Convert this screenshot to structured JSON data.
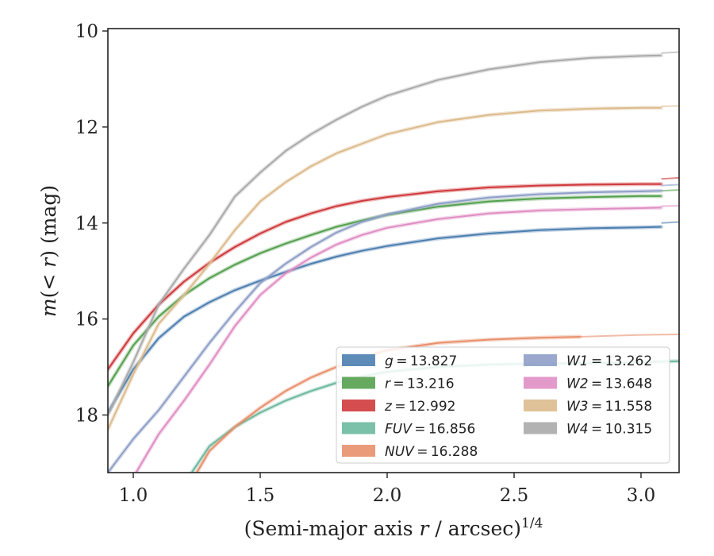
{
  "chart_data": {
    "type": "line",
    "xlabel": "(Semi-major axis r / arcsec)^{1/4}",
    "xlabel_main": "(Semi-major axis ",
    "xlabel_var": "r",
    "xlabel_rest": " / arcsec)",
    "xlabel_sup": "1/4",
    "ylabel": "m(< r) (mag)",
    "ylabel_m": "m",
    "ylabel_open": "(",
    "ylabel_lt": "< r",
    "ylabel_close": ")",
    "ylabel_unit": " (mag)",
    "xlim": [
      0.9,
      3.15
    ],
    "ylim": [
      19.2,
      9.95
    ],
    "y_inverted": true,
    "x_ticks": [
      1.0,
      1.5,
      2.0,
      2.5,
      3.0
    ],
    "x_tick_labels": [
      "1.0",
      "1.5",
      "2.0",
      "2.5",
      "3.0"
    ],
    "y_ticks": [
      10,
      12,
      14,
      16,
      18
    ],
    "y_tick_labels": [
      "10",
      "12",
      "14",
      "16",
      "18"
    ],
    "grid": false,
    "legend_position": "lower-right",
    "series": [
      {
        "name": "g",
        "value": "13.827",
        "color": "#4c7fb0",
        "x": [
          0.9,
          1.0,
          1.1,
          1.2,
          1.3,
          1.4,
          1.5,
          1.6,
          1.7,
          1.8,
          1.9,
          2.0,
          2.2,
          2.4,
          2.6,
          2.8,
          3.0,
          3.08
        ],
        "values": [
          17.95,
          17.05,
          16.4,
          15.95,
          15.65,
          15.4,
          15.2,
          15.02,
          14.85,
          14.7,
          14.58,
          14.48,
          14.32,
          14.22,
          14.15,
          14.11,
          14.09,
          14.08
        ],
        "ext_x": [
          3.08,
          3.15
        ],
        "ext_values": [
          14.0,
          13.98
        ]
      },
      {
        "name": "r",
        "value": "13.216",
        "color": "#55a14f",
        "x": [
          0.9,
          1.0,
          1.1,
          1.2,
          1.3,
          1.4,
          1.5,
          1.6,
          1.7,
          1.8,
          1.9,
          2.0,
          2.2,
          2.4,
          2.6,
          2.8,
          3.0,
          3.08
        ],
        "values": [
          17.4,
          16.55,
          15.95,
          15.5,
          15.15,
          14.87,
          14.63,
          14.43,
          14.25,
          14.08,
          13.95,
          13.83,
          13.66,
          13.55,
          13.49,
          13.46,
          13.44,
          13.44
        ],
        "ext_x": [
          3.08,
          3.15
        ],
        "ext_values": [
          13.33,
          13.31
        ]
      },
      {
        "name": "z",
        "value": "12.992",
        "color": "#cf3a3c",
        "x": [
          0.9,
          1.0,
          1.1,
          1.2,
          1.3,
          1.4,
          1.5,
          1.6,
          1.7,
          1.8,
          1.9,
          2.0,
          2.2,
          2.4,
          2.6,
          2.8,
          3.0,
          3.08
        ],
        "values": [
          17.05,
          16.3,
          15.7,
          15.22,
          14.83,
          14.5,
          14.22,
          13.98,
          13.8,
          13.65,
          13.54,
          13.46,
          13.34,
          13.26,
          13.22,
          13.2,
          13.19,
          13.19
        ],
        "ext_x": [
          3.08,
          3.15
        ],
        "ext_values": [
          13.08,
          13.06
        ]
      },
      {
        "name": "FUV",
        "value": "16.856",
        "color": "#6db9a0",
        "x": [
          1.23,
          1.3,
          1.4,
          1.5,
          1.6,
          1.7,
          1.8,
          1.9,
          2.0,
          2.2,
          2.4,
          2.6,
          2.8,
          3.0,
          3.15
        ],
        "values": [
          19.2,
          18.65,
          18.25,
          17.95,
          17.7,
          17.5,
          17.33,
          17.2,
          17.1,
          17.0,
          16.95,
          16.93,
          16.92,
          16.9,
          16.88
        ]
      },
      {
        "name": "NUV",
        "value": "16.288",
        "color": "#e8906c",
        "x": [
          1.25,
          1.3,
          1.4,
          1.5,
          1.6,
          1.7,
          1.8,
          1.9,
          2.0,
          2.2,
          2.4,
          2.6,
          2.76
        ],
        "values": [
          19.2,
          18.75,
          18.25,
          17.85,
          17.5,
          17.22,
          17.0,
          16.8,
          16.65,
          16.5,
          16.43,
          16.39,
          16.37
        ],
        "ext_x": [
          2.76,
          3.0,
          3.15
        ],
        "ext_values": [
          16.37,
          16.33,
          16.32
        ]
      },
      {
        "name": "W1",
        "value": "13.262",
        "color": "#8e9fc7",
        "x": [
          0.9,
          1.0,
          1.1,
          1.2,
          1.3,
          1.4,
          1.5,
          1.6,
          1.7,
          1.8,
          1.9,
          2.0,
          2.2,
          2.4,
          2.6,
          2.8,
          3.0,
          3.08
        ],
        "values": [
          19.2,
          18.5,
          17.9,
          17.2,
          16.5,
          15.85,
          15.25,
          14.85,
          14.5,
          14.2,
          13.98,
          13.82,
          13.6,
          13.47,
          13.4,
          13.36,
          13.34,
          13.33
        ],
        "ext_x": [
          3.08,
          3.15
        ],
        "ext_values": [
          13.22,
          13.2
        ]
      },
      {
        "name": "W2",
        "value": "13.648",
        "color": "#e08fc4",
        "x": [
          0.9,
          1.0,
          1.1,
          1.2,
          1.3,
          1.4,
          1.5,
          1.6,
          1.7,
          1.8,
          1.9,
          2.0,
          2.2,
          2.4,
          2.6,
          2.8,
          3.0,
          3.08
        ],
        "values": [
          20.0,
          19.3,
          18.4,
          17.7,
          16.95,
          16.15,
          15.5,
          15.05,
          14.72,
          14.45,
          14.25,
          14.1,
          13.92,
          13.8,
          13.74,
          13.71,
          13.69,
          13.68
        ],
        "ext_x": [
          3.08,
          3.15
        ],
        "ext_values": [
          13.65,
          13.64
        ]
      },
      {
        "name": "W3",
        "value": "11.558",
        "color": "#dcbb8c",
        "x": [
          0.9,
          1.0,
          1.1,
          1.2,
          1.3,
          1.4,
          1.5,
          1.6,
          1.7,
          1.8,
          1.9,
          2.0,
          2.2,
          2.4,
          2.6,
          2.8,
          3.0,
          3.08
        ],
        "values": [
          18.3,
          17.15,
          16.1,
          15.5,
          14.85,
          14.15,
          13.55,
          13.15,
          12.82,
          12.55,
          12.35,
          12.15,
          11.9,
          11.75,
          11.66,
          11.62,
          11.6,
          11.6
        ],
        "ext_x": [
          3.08,
          3.15
        ],
        "ext_values": [
          11.57,
          11.56
        ]
      },
      {
        "name": "W4",
        "value": "10.315",
        "color": "#aaaaaa",
        "x": [
          0.9,
          1.0,
          1.1,
          1.2,
          1.3,
          1.4,
          1.5,
          1.6,
          1.7,
          1.8,
          1.9,
          2.0,
          2.2,
          2.4,
          2.6,
          2.8,
          3.0,
          3.08
        ],
        "values": [
          18.0,
          16.9,
          15.7,
          14.95,
          14.25,
          13.45,
          12.95,
          12.5,
          12.15,
          11.85,
          11.58,
          11.35,
          11.02,
          10.8,
          10.65,
          10.56,
          10.52,
          10.51
        ],
        "ext_x": [
          3.08,
          3.15
        ],
        "ext_values": [
          10.46,
          10.44
        ]
      }
    ]
  }
}
